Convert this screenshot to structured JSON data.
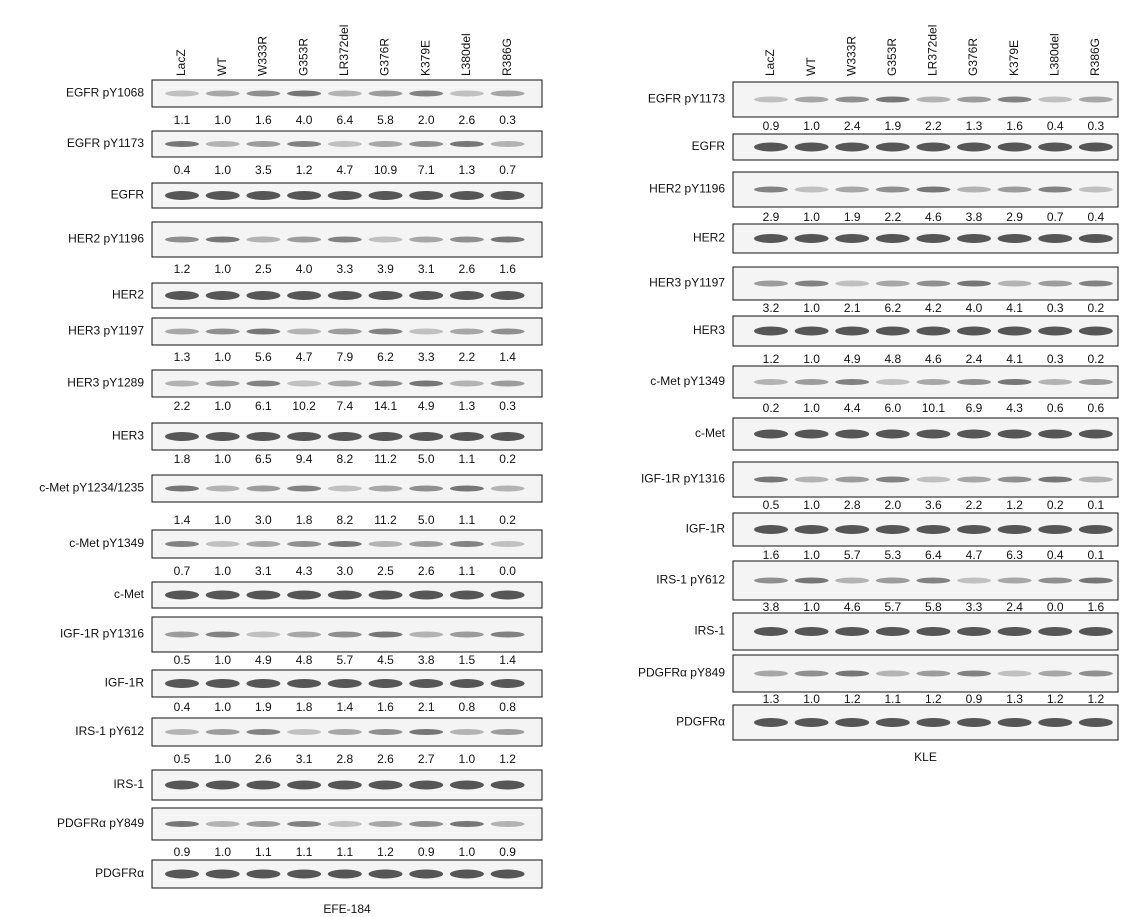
{
  "panels": [
    {
      "caption": "EFE-184",
      "lanes": [
        "LacZ",
        "WT",
        "W333R",
        "G353R",
        "LR372del",
        "G376R",
        "K379E",
        "L380del",
        "R386G"
      ],
      "rows": [
        {
          "label": "EGFR pY1068",
          "quant": [
            "1.1",
            "1.0",
            "1.6",
            "4.0",
            "6.4",
            "5.8",
            "2.0",
            "2.6",
            "0.3"
          ]
        },
        {
          "label": "EGFR pY1173",
          "quant": [
            "0.4",
            "1.0",
            "3.5",
            "1.2",
            "4.7",
            "10.9",
            "7.1",
            "1.3",
            "0.7"
          ]
        },
        {
          "label": "EGFR"
        },
        {
          "label": "HER2 pY1196",
          "quant": [
            "1.2",
            "1.0",
            "2.5",
            "4.0",
            "3.3",
            "3.9",
            "3.1",
            "2.6",
            "1.6"
          ]
        },
        {
          "label": "HER2"
        },
        {
          "label": "HER3 pY1197",
          "quant": [
            "1.3",
            "1.0",
            "5.6",
            "4.7",
            "7.9",
            "6.2",
            "3.3",
            "2.2",
            "1.4"
          ]
        },
        {
          "label": "HER3 pY1289",
          "quant": [
            "2.2",
            "1.0",
            "6.1",
            "10.2",
            "7.4",
            "14.1",
            "4.9",
            "1.3",
            "0.3"
          ]
        },
        {
          "label": "HER3",
          "quant": [
            "1.8",
            "1.0",
            "6.5",
            "9.4",
            "8.2",
            "11.2",
            "5.0",
            "1.1",
            "0.2"
          ]
        },
        {
          "label": "c-Met pY1234/1235",
          "quant": [
            "1.4",
            "1.0",
            "3.0",
            "1.8",
            "8.2",
            "11.2",
            "5.0",
            "1.1",
            "0.2"
          ]
        },
        {
          "label": "c-Met pY1349",
          "quant": [
            "0.7",
            "1.0",
            "3.1",
            "4.3",
            "3.0",
            "2.5",
            "2.6",
            "1.1",
            "0.0"
          ]
        },
        {
          "label": "c-Met"
        },
        {
          "label": "IGF-1R pY1316",
          "quant": [
            "0.5",
            "1.0",
            "4.9",
            "4.8",
            "5.7",
            "4.5",
            "3.8",
            "1.5",
            "1.4"
          ]
        },
        {
          "label": "IGF-1R",
          "quant": [
            "0.4",
            "1.0",
            "1.9",
            "1.8",
            "1.4",
            "1.6",
            "2.1",
            "0.8",
            "0.8"
          ]
        },
        {
          "label": "IRS-1 pY612",
          "quant": [
            "0.5",
            "1.0",
            "2.6",
            "3.1",
            "2.8",
            "2.6",
            "2.7",
            "1.0",
            "1.2"
          ]
        },
        {
          "label": "IRS-1"
        },
        {
          "label": "PDGFRα pY849",
          "quant": [
            "0.9",
            "1.0",
            "1.1",
            "1.1",
            "1.1",
            "1.2",
            "0.9",
            "1.0",
            "0.9"
          ]
        },
        {
          "label": "PDGFRα"
        }
      ]
    },
    {
      "caption": "KLE",
      "lanes": [
        "LacZ",
        "WT",
        "W333R",
        "G353R",
        "LR372del",
        "G376R",
        "K379E",
        "L380del",
        "R386G"
      ],
      "rows": [
        {
          "label": "EGFR pY1173",
          "quant": [
            "0.9",
            "1.0",
            "2.4",
            "1.9",
            "2.2",
            "1.3",
            "1.6",
            "0.4",
            "0.3"
          ]
        },
        {
          "label": "EGFR"
        },
        {
          "label": "HER2 pY1196",
          "quant": [
            "2.9",
            "1.0",
            "1.9",
            "2.2",
            "4.6",
            "3.8",
            "2.9",
            "0.7",
            "0.4"
          ]
        },
        {
          "label": "HER2"
        },
        {
          "label": "HER3 pY1197",
          "quant": [
            "3.2",
            "1.0",
            "2.1",
            "6.2",
            "4.2",
            "4.0",
            "4.1",
            "0.3",
            "0.2"
          ]
        },
        {
          "label": "HER3",
          "quant": [
            "1.2",
            "1.0",
            "4.9",
            "4.8",
            "4.6",
            "2.4",
            "4.1",
            "0.3",
            "0.2"
          ]
        },
        {
          "label": "c-Met pY1349",
          "quant": [
            "0.2",
            "1.0",
            "4.4",
            "6.0",
            "10.1",
            "6.9",
            "4.3",
            "0.6",
            "0.6"
          ]
        },
        {
          "label": "c-Met"
        },
        {
          "label": "IGF-1R pY1316",
          "quant": [
            "0.5",
            "1.0",
            "2.8",
            "2.0",
            "3.6",
            "2.2",
            "1.2",
            "0.2",
            "0.1"
          ]
        },
        {
          "label": "IGF-1R",
          "quant": [
            "1.6",
            "1.0",
            "5.7",
            "5.3",
            "6.4",
            "4.7",
            "6.3",
            "0.4",
            "0.1"
          ]
        },
        {
          "label": "IRS-1 pY612",
          "quant": [
            "3.8",
            "1.0",
            "4.6",
            "5.7",
            "5.8",
            "3.3",
            "2.4",
            "0.0",
            "1.6"
          ]
        },
        {
          "label": "IRS-1"
        },
        {
          "label": "PDGFRα pY849",
          "quant": [
            "1.3",
            "1.0",
            "1.2",
            "1.1",
            "1.2",
            "0.9",
            "1.3",
            "1.2",
            "1.2"
          ]
        },
        {
          "label": "PDGFRα"
        }
      ]
    }
  ]
}
